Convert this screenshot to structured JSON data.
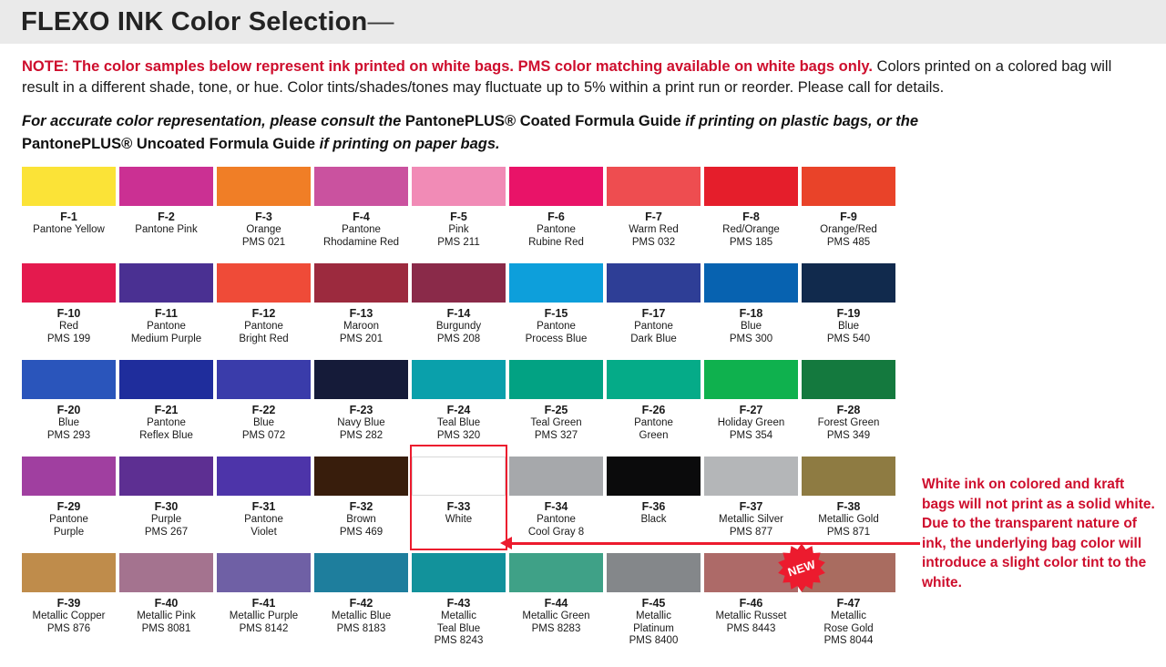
{
  "header": {
    "title": "FLEXO INK Color Selection",
    "dash": "—"
  },
  "note": {
    "red": "NOTE:  The color samples below represent ink printed on white bags. PMS color matching available on white bags only.",
    "black": " Colors printed on a colored bag will result in a different shade, tone, or hue. Color tints/shades/tones may fluctuate up to 5% within a print run or reorder. Please call for details."
  },
  "guide": {
    "seg1": "For accurate color representation, please consult the ",
    "seg2": "PantonePLUS® Coated Formula Guide",
    "seg3": " if printing on plastic bags, or the ",
    "seg4": "PantonePLUS® Uncoated Formula Guide",
    "seg5": " if printing on paper bags."
  },
  "white_note": "White ink on colored and kraft bags will not print as a solid white. Due to the transparent nature of ink, the underlying bag color will introduce a slight color tint to the white.",
  "new_badge": "NEW",
  "colors": {
    "text_red": "#ce0e2d",
    "shape_red": "#ec1b2e",
    "header_bg": "#eaeaea"
  },
  "swatches": [
    {
      "code": "F-1",
      "lines": [
        "Pantone Yellow"
      ],
      "color": "#fbe337"
    },
    {
      "code": "F-2",
      "lines": [
        "Pantone Pink"
      ],
      "color": "#cb3093"
    },
    {
      "code": "F-3",
      "lines": [
        "Orange",
        "PMS 021"
      ],
      "color": "#f07e26"
    },
    {
      "code": "F-4",
      "lines": [
        "Pantone",
        "Rhodamine Red"
      ],
      "color": "#ca529f"
    },
    {
      "code": "F-5",
      "lines": [
        "Pink",
        "PMS 211"
      ],
      "color": "#f18bb6"
    },
    {
      "code": "F-6",
      "lines": [
        "Pantone",
        "Rubine Red"
      ],
      "color": "#e91368"
    },
    {
      "code": "F-7",
      "lines": [
        "Warm Red",
        "PMS 032"
      ],
      "color": "#ee4d50"
    },
    {
      "code": "F-8",
      "lines": [
        "Red/Orange",
        "PMS 185"
      ],
      "color": "#e51e2b"
    },
    {
      "code": "F-9",
      "lines": [
        "Orange/Red",
        "PMS 485"
      ],
      "color": "#e94329"
    },
    {
      "code": "F-10",
      "lines": [
        "Red",
        "PMS 199"
      ],
      "color": "#e41a4e"
    },
    {
      "code": "F-11",
      "lines": [
        "Pantone",
        "Medium Purple"
      ],
      "color": "#4a3092"
    },
    {
      "code": "F-12",
      "lines": [
        "Pantone",
        "Bright Red"
      ],
      "color": "#ef4b38"
    },
    {
      "code": "F-13",
      "lines": [
        "Maroon",
        "PMS 201"
      ],
      "color": "#9c2a3e"
    },
    {
      "code": "F-14",
      "lines": [
        "Burgundy",
        "PMS 208"
      ],
      "color": "#8a2a49"
    },
    {
      "code": "F-15",
      "lines": [
        "Pantone",
        "Process Blue"
      ],
      "color": "#0d9fdb"
    },
    {
      "code": "F-17",
      "lines": [
        "Pantone",
        "Dark Blue"
      ],
      "color": "#2e3e96"
    },
    {
      "code": "F-18",
      "lines": [
        "Blue",
        "PMS 300"
      ],
      "color": "#0762b0"
    },
    {
      "code": "F-19",
      "lines": [
        "Blue",
        "PMS 540"
      ],
      "color": "#112a4d"
    },
    {
      "code": "F-20",
      "lines": [
        "Blue",
        "PMS 293"
      ],
      "color": "#2a55bb"
    },
    {
      "code": "F-21",
      "lines": [
        "Pantone",
        "Reflex Blue"
      ],
      "color": "#1f2d9c"
    },
    {
      "code": "F-22",
      "lines": [
        "Blue",
        "PMS 072"
      ],
      "color": "#3a3caa"
    },
    {
      "code": "F-23",
      "lines": [
        "Navy Blue",
        "PMS 282"
      ],
      "color": "#151b39"
    },
    {
      "code": "F-24",
      "lines": [
        "Teal Blue",
        "PMS 320"
      ],
      "color": "#0aa0ab"
    },
    {
      "code": "F-25",
      "lines": [
        "Teal Green",
        "PMS 327"
      ],
      "color": "#02a283"
    },
    {
      "code": "F-26",
      "lines": [
        "Pantone",
        "Green"
      ],
      "color": "#05ab88"
    },
    {
      "code": "F-27",
      "lines": [
        "Holiday Green",
        "PMS 354"
      ],
      "color": "#0fb14e"
    },
    {
      "code": "F-28",
      "lines": [
        "Forest Green",
        "PMS 349"
      ],
      "color": "#14793e"
    },
    {
      "code": "F-29",
      "lines": [
        "Pantone",
        "Purple"
      ],
      "color": "#a03fa0"
    },
    {
      "code": "F-30",
      "lines": [
        "Purple",
        "PMS 267"
      ],
      "color": "#5d2f92"
    },
    {
      "code": "F-31",
      "lines": [
        "Pantone",
        "Violet"
      ],
      "color": "#4d34a9"
    },
    {
      "code": "F-32",
      "lines": [
        "Brown",
        "PMS 469"
      ],
      "color": "#381d0c"
    },
    {
      "code": "F-33",
      "lines": [
        "White"
      ],
      "color": "#ffffff",
      "highlight": true,
      "bordered": true
    },
    {
      "code": "F-34",
      "lines": [
        "Pantone",
        "Cool Gray 8"
      ],
      "color": "#a6a8ab"
    },
    {
      "code": "F-36",
      "lines": [
        "Black"
      ],
      "color": "#0b0b0c"
    },
    {
      "code": "F-37",
      "lines": [
        "Metallic Silver",
        "PMS 877"
      ],
      "color": "#b4b6b8"
    },
    {
      "code": "F-38",
      "lines": [
        "Metallic Gold",
        "PMS 871"
      ],
      "color": "#8e7b42"
    },
    {
      "code": "F-39",
      "lines": [
        "Metallic Copper",
        "PMS 876"
      ],
      "color": "#bf8c4b"
    },
    {
      "code": "F-40",
      "lines": [
        "Metallic Pink",
        "PMS 8081"
      ],
      "color": "#a4738f"
    },
    {
      "code": "F-41",
      "lines": [
        "Metallic Purple",
        "PMS 8142"
      ],
      "color": "#6f60a5"
    },
    {
      "code": "F-42",
      "lines": [
        "Metallic Blue",
        "PMS 8183"
      ],
      "color": "#1e7e9d"
    },
    {
      "code": "F-43",
      "lines": [
        "Metallic",
        "Teal Blue",
        "PMS 8243"
      ],
      "color": "#12929b"
    },
    {
      "code": "F-44",
      "lines": [
        "Metallic Green",
        "PMS 8283"
      ],
      "color": "#3fa187"
    },
    {
      "code": "F-45",
      "lines": [
        "Metallic",
        "Platinum",
        "PMS 8400"
      ],
      "color": "#84878a"
    },
    {
      "code": "F-46",
      "lines": [
        "Metallic Russet",
        "PMS 8443"
      ],
      "color": "#ad6a68"
    },
    {
      "code": "F-47",
      "lines": [
        "Metallic",
        "Rose Gold",
        "PMS 8044"
      ],
      "color": "#a96c60"
    }
  ]
}
